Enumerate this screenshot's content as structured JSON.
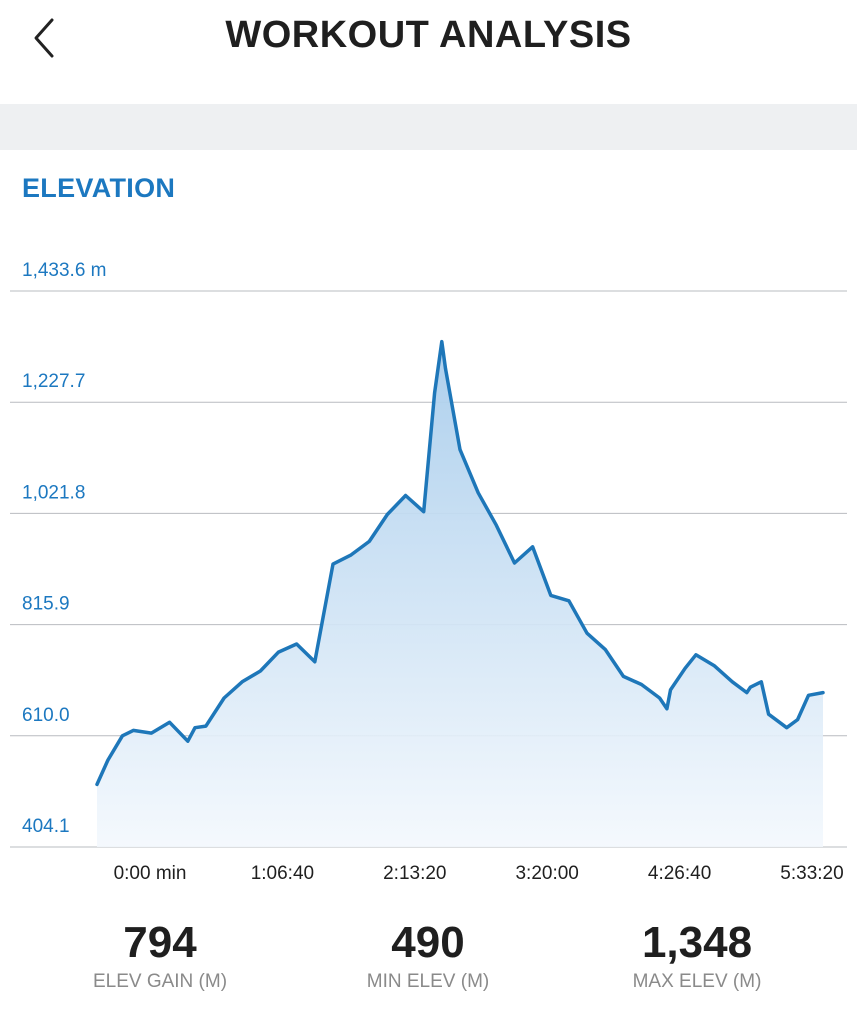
{
  "header": {
    "title": "WORKOUT ANALYSIS",
    "back_icon": "chevron-left-icon"
  },
  "section": {
    "title": "ELEVATION"
  },
  "chart_data": {
    "type": "area",
    "title": "ELEVATION",
    "y_unit": "m",
    "y_ticks": [
      "1,433.6 m",
      "1,227.7",
      "1,021.8",
      "815.9",
      "610.0",
      "404.1"
    ],
    "x_ticks": [
      "0:00 min",
      "1:06:40",
      "2:13:20",
      "3:20:00",
      "4:26:40",
      "5:33:20"
    ],
    "ylim": [
      404.1,
      1433.6
    ],
    "xlim_seconds": [
      0,
      20000
    ],
    "grid": true,
    "colors": {
      "line": "#1e77b9",
      "fill_top": "#a9cdec",
      "fill_bottom": "#f3f8fd",
      "text": "#1c78c0"
    },
    "series": [
      {
        "x": [
          0,
          300,
          700,
          1000,
          1500,
          2000,
          2500,
          2700,
          3000,
          3500,
          4000,
          4500,
          5000,
          5500,
          6000,
          6500,
          7000,
          7500,
          8000,
          8500,
          9000,
          9300,
          9500,
          9600,
          10000,
          10500,
          11000,
          11500,
          12000,
          12500,
          13000,
          13500,
          14000,
          14500,
          15000,
          15500,
          15700,
          15800,
          16200,
          16500,
          17000,
          17500,
          17900,
          18000,
          18300,
          18500,
          19000,
          19300,
          19600,
          20000
        ],
        "y": [
          520,
          565,
          610,
          620,
          615,
          635,
          600,
          625,
          628,
          680,
          710,
          730,
          765,
          780,
          747,
          928,
          945,
          970,
          1020,
          1055,
          1025,
          1245,
          1340,
          1290,
          1140,
          1060,
          1000,
          930,
          960,
          870,
          860,
          800,
          770,
          720,
          705,
          680,
          660,
          695,
          735,
          760,
          740,
          710,
          690,
          700,
          710,
          650,
          625,
          640,
          685,
          690
        ]
      }
    ]
  },
  "stats": [
    {
      "value": "794",
      "label": "ELEV GAIN (M)"
    },
    {
      "value": "490",
      "label": "MIN ELEV (M)"
    },
    {
      "value": "1,348",
      "label": "MAX ELEV (M)"
    }
  ]
}
